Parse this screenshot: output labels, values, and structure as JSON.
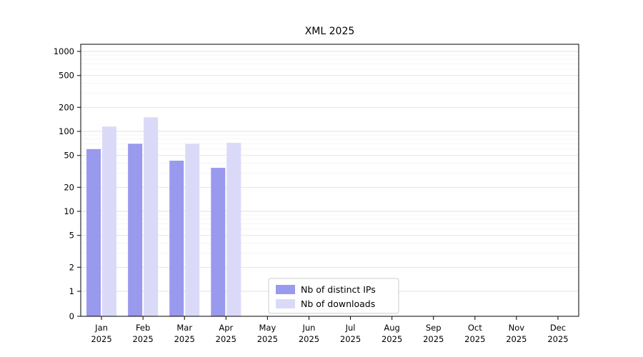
{
  "chart_data": {
    "type": "bar",
    "title": "XML 2025",
    "categories": [
      "Jan 2025",
      "Feb 2025",
      "Mar 2025",
      "Apr 2025",
      "May 2025",
      "Jun 2025",
      "Jul 2025",
      "Aug 2025",
      "Sep 2025",
      "Oct 2025",
      "Nov 2025",
      "Dec 2025"
    ],
    "series": [
      {
        "name": "Nb of distinct IPs",
        "color": "#9999ee",
        "values": [
          60,
          70,
          43,
          35,
          null,
          null,
          null,
          null,
          null,
          null,
          null,
          null
        ]
      },
      {
        "name": "Nb of downloads",
        "color": "#dadaf8",
        "values": [
          115,
          150,
          70,
          72,
          null,
          null,
          null,
          null,
          null,
          null,
          null,
          null
        ]
      }
    ],
    "y_ticks": [
      0,
      1,
      2,
      5,
      10,
      20,
      50,
      100,
      200,
      500,
      1000
    ],
    "y_scale": "symlog",
    "ylim": [
      0,
      1400
    ],
    "xlabel": "",
    "ylabel": "",
    "grid": true,
    "legend_position": "lower center",
    "colors": {
      "major_grid": "#e2e2e2",
      "minor_grid": "#f2f2f2",
      "axis": "#000000",
      "legend_border": "#cccccc",
      "legend_bg": "#ffffff"
    }
  }
}
